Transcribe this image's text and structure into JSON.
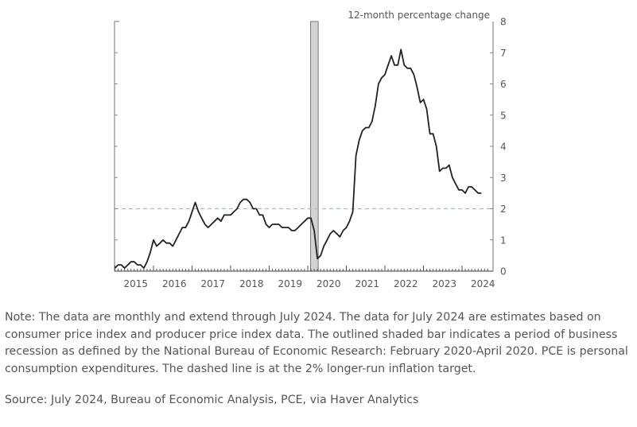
{
  "chart_data": {
    "type": "line",
    "title": "",
    "ylabel": "12-month percentage change",
    "xlabel": "",
    "ylim": [
      0,
      8
    ],
    "yticks": [
      0,
      1,
      2,
      3,
      4,
      5,
      6,
      7,
      8
    ],
    "x_start": "2015-01",
    "x_end": "2024-07",
    "x_tick_labels": [
      "2015",
      "2016",
      "2017",
      "2018",
      "2019",
      "2020",
      "2021",
      "2022",
      "2023",
      "2024"
    ],
    "reference_line": {
      "value": 2,
      "style": "dashed",
      "color": "#8cc8d8",
      "label": "2% longer-run inflation target"
    },
    "recession": {
      "start": "2020-02",
      "end": "2020-04",
      "fill": "#d3d3d3",
      "stroke": "#777777"
    },
    "series": [
      {
        "name": "PCE inflation",
        "color": "#222222",
        "values": [
          0.1,
          0.2,
          0.2,
          0.1,
          0.2,
          0.3,
          0.3,
          0.2,
          0.2,
          0.1,
          0.3,
          0.6,
          1.0,
          0.8,
          0.9,
          1.0,
          0.9,
          0.9,
          0.8,
          1.0,
          1.2,
          1.4,
          1.4,
          1.6,
          1.9,
          2.2,
          1.9,
          1.7,
          1.5,
          1.4,
          1.5,
          1.6,
          1.7,
          1.6,
          1.8,
          1.8,
          1.8,
          1.9,
          2.0,
          2.2,
          2.3,
          2.3,
          2.2,
          2.0,
          2.0,
          1.8,
          1.8,
          1.5,
          1.4,
          1.5,
          1.5,
          1.5,
          1.4,
          1.4,
          1.4,
          1.3,
          1.3,
          1.4,
          1.5,
          1.6,
          1.7,
          1.7,
          1.3,
          0.4,
          0.5,
          0.8,
          1.0,
          1.2,
          1.3,
          1.2,
          1.1,
          1.3,
          1.4,
          1.6,
          1.9,
          3.7,
          4.2,
          4.5,
          4.6,
          4.6,
          4.8,
          5.3,
          6.0,
          6.2,
          6.3,
          6.6,
          6.9,
          6.6,
          6.6,
          7.1,
          6.6,
          6.5,
          6.5,
          6.3,
          5.9,
          5.4,
          5.5,
          5.2,
          4.4,
          4.4,
          4.0,
          3.2,
          3.3,
          3.3,
          3.4,
          3.0,
          2.8,
          2.6,
          2.6,
          2.5,
          2.7,
          2.7,
          2.6,
          2.5,
          2.5
        ]
      }
    ]
  },
  "note": "Note: The data are monthly and extend through July 2024. The data for July 2024 are estimates based on consumer price index and producer price index data. The outlined shaded bar indicates a period of business recession as defined by the National Bureau of Economic Research: February 2020-April 2020. PCE is personal consumption expenditures. The dashed line is at the 2% longer-run inflation target.",
  "source": "Source: July 2024, Bureau of Economic Analysis, PCE, via Haver Analytics"
}
